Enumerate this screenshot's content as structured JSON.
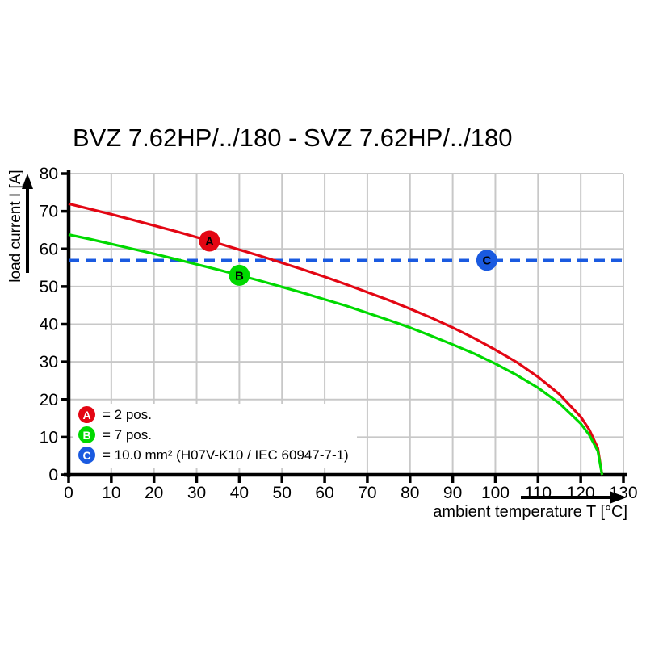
{
  "title": "BVZ 7.62HP/../180 - SVZ 7.62HP/../180",
  "y_axis": {
    "label": "load current I [A]"
  },
  "x_axis": {
    "label": "ambient temperature T [°C]"
  },
  "colors": {
    "curve_a_red": "#e30613",
    "curve_b_green": "#00d900",
    "limit_c_blue": "#1a5ae0",
    "grid": "#c8c8c8",
    "axis": "#000000"
  },
  "legend": {
    "position": "inside-bottom-left",
    "items": [
      {
        "letter": "A",
        "label": "= 2 pos.",
        "color": "#e30613"
      },
      {
        "letter": "B",
        "label": "= 7 pos.",
        "color": "#00d900"
      },
      {
        "letter": "C",
        "label": "= 10.0 mm² (H07V-K10 / IEC 60947-7-1)",
        "color": "#1a5ae0"
      }
    ]
  },
  "chart_data": {
    "type": "line",
    "title": "BVZ 7.62HP/../180 - SVZ 7.62HP/../180",
    "xlabel": "ambient temperature T [°C]",
    "ylabel": "load current I [A]",
    "xlim": [
      0,
      130
    ],
    "ylim": [
      0,
      80
    ],
    "xticks": [
      0,
      10,
      20,
      30,
      40,
      50,
      60,
      70,
      80,
      90,
      100,
      110,
      120,
      130
    ],
    "yticks": [
      0,
      10,
      20,
      30,
      40,
      50,
      60,
      70,
      80
    ],
    "grid": true,
    "x": [
      0,
      5,
      10,
      15,
      20,
      25,
      30,
      35,
      40,
      45,
      50,
      55,
      60,
      65,
      70,
      75,
      80,
      85,
      90,
      95,
      100,
      105,
      110,
      115,
      120,
      122,
      124,
      125
    ],
    "series": [
      {
        "name": "A = 2 pos.",
        "color": "#e30613",
        "style": "solid",
        "values": [
          72,
          70.6,
          69.2,
          67.7,
          66.2,
          64.7,
          63.1,
          61.5,
          59.8,
          58.1,
          56.3,
          54.5,
          52.6,
          50.6,
          48.5,
          46.4,
          44.1,
          41.7,
          39.1,
          36.3,
          33.2,
          29.9,
          26,
          21.4,
          15.4,
          12,
          7.1,
          0
        ]
      },
      {
        "name": "B = 7 pos.",
        "color": "#00d900",
        "style": "solid",
        "values": [
          63.8,
          62.6,
          61.3,
          60,
          58.7,
          57.3,
          55.9,
          54.5,
          53,
          51.5,
          49.9,
          48.3,
          46.6,
          44.9,
          43,
          41.1,
          39.1,
          36.9,
          34.6,
          32.2,
          29.5,
          26.5,
          23.1,
          19,
          13.6,
          10.6,
          6.3,
          0
        ]
      },
      {
        "name": "C = 10.0 mm² (H07V-K10 / IEC 60947-7-1)",
        "color": "#1a5ae0",
        "style": "dashed",
        "x": [
          0,
          130
        ],
        "values": [
          57,
          57
        ]
      }
    ],
    "markers": [
      {
        "label": "A",
        "x": 33,
        "y": 62.1,
        "color": "#e30613"
      },
      {
        "label": "B",
        "x": 40,
        "y": 53,
        "color": "#00d900"
      },
      {
        "label": "C",
        "x": 98,
        "y": 57,
        "color": "#1a5ae0"
      }
    ]
  }
}
